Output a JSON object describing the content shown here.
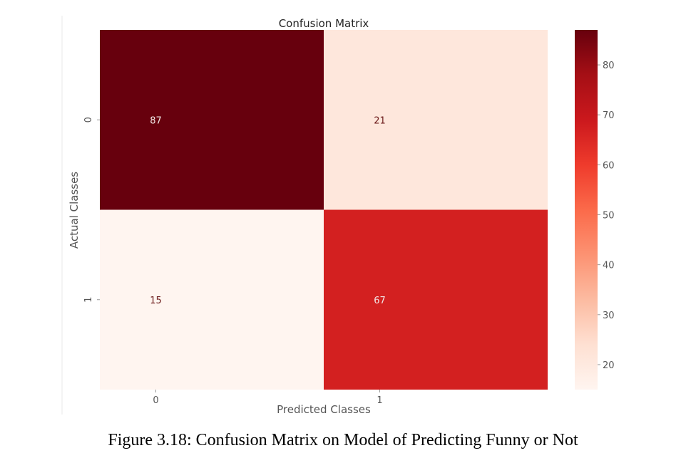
{
  "chart_data": {
    "type": "heatmap",
    "title": "Confusion Matrix",
    "xlabel": "Predicted Classes",
    "ylabel": "Actual Classes",
    "x_categories": [
      "0",
      "1"
    ],
    "y_categories": [
      "0",
      "1"
    ],
    "values": [
      [
        87,
        21
      ],
      [
        15,
        67
      ]
    ],
    "colorbar": {
      "min": 15,
      "max": 87,
      "ticks": [
        20,
        30,
        40,
        50,
        60,
        70,
        80
      ],
      "colormap": "Reds",
      "stops": [
        "#fff5f0",
        "#fee0d2",
        "#fcbba1",
        "#fc9272",
        "#fb6a4a",
        "#ef3b2c",
        "#cb181d",
        "#a50f15",
        "#67000d"
      ]
    }
  },
  "caption": "Figure 3.18: Confusion Matrix on Model of Predicting Funny or Not"
}
